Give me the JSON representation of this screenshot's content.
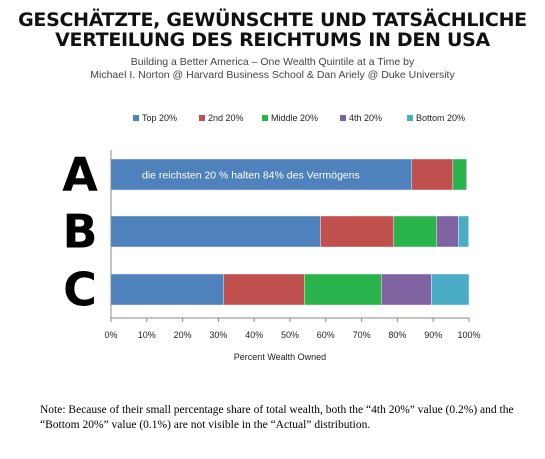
{
  "header": {
    "title_line1": "GESCHÄTZTE, GEWÜNSCHTE UND TATSÄCHLICHE",
    "title_line2": "VERTEILUNG DES REICHTUMS IN DEN USA",
    "subtitle_line1": "Building a Better America – One Wealth Quintile at a Time by",
    "subtitle_line2": "Michael I. Norton  @ Harvard Business School &  Dan Ariely @ Duke University"
  },
  "chart_data": {
    "type": "bar",
    "orientation": "horizontal",
    "stacked": true,
    "categories": [
      "A",
      "B",
      "C"
    ],
    "series": [
      {
        "name": "Top 20%",
        "color": "#4f81bd",
        "values": [
          84,
          58.5,
          31.5
        ]
      },
      {
        "name": "2nd 20%",
        "color": "#c0504d",
        "values": [
          11.5,
          20.5,
          22.5
        ]
      },
      {
        "name": "Middle 20%",
        "color": "#29b34a",
        "values": [
          3.8,
          12,
          21.5
        ]
      },
      {
        "name": "4th 20%",
        "color": "#8064a2",
        "values": [
          0.2,
          6,
          14
        ]
      },
      {
        "name": "Bottom 20%",
        "color": "#4bacc6",
        "values": [
          0.1,
          2.9,
          10.5
        ]
      }
    ],
    "xlabel": "Percent Wealth Owned",
    "xlim": [
      0,
      100
    ],
    "xticks": [
      "0%",
      "10%",
      "20%",
      "30%",
      "40%",
      "50%",
      "60%",
      "70%",
      "80%",
      "90%",
      "100%"
    ],
    "legend_position": "top",
    "annotation": "die reichsten 20 % halten 84% des Vermögens",
    "grid": false
  },
  "note": {
    "text": "Note: Because of their small percentage share of total wealth, both the “4th 20%” value (0.2%) and the “Bottom 20%” value (0.1%) are not visible in the “Actual” distribution."
  }
}
